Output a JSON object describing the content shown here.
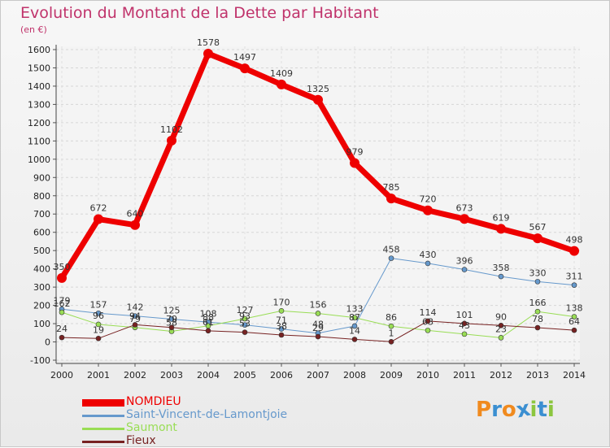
{
  "title": "Evolution du Montant de la Dette par Habitant",
  "subtitle": "(en €)",
  "logo": {
    "letters": [
      "P",
      "r",
      "o",
      "x",
      "i",
      "t",
      "i"
    ],
    "colors": [
      "#f08a1e",
      "#3b8fd1",
      "#f08a1e",
      "#3b8fd1",
      "#8cc63f",
      "#3b8fd1",
      "#8cc63f"
    ]
  },
  "chart_data": {
    "type": "line",
    "x": [
      "2000",
      "2001",
      "2002",
      "2003",
      "2004",
      "2005",
      "2006",
      "2007",
      "2008",
      "2009",
      "2010",
      "2011",
      "2012",
      "2013",
      "2014"
    ],
    "ylim": [
      -100,
      1600
    ],
    "yticks": [
      -100,
      0,
      100,
      200,
      300,
      400,
      500,
      600,
      700,
      800,
      900,
      1000,
      1100,
      1200,
      1300,
      1400,
      1500,
      1600
    ],
    "grid": true,
    "legend_position": "bottom-left",
    "series": [
      {
        "name": "NOMDIEU",
        "color": "#ee0000",
        "width": 7,
        "marker": 6,
        "values": [
          350,
          672,
          640,
          1102,
          1578,
          1497,
          1409,
          1325,
          979,
          785,
          720,
          673,
          619,
          567,
          498
        ],
        "labels": [
          "350",
          "672",
          "640",
          "1102",
          "1578",
          "1497",
          "1409",
          "1325",
          "979",
          "785",
          "720",
          "673",
          "619",
          "567",
          "498"
        ]
      },
      {
        "name": "Saint-Vincent-de-Lamontjoie",
        "color": "#6699cc",
        "width": 1,
        "marker": 3,
        "values": [
          179,
          157,
          142,
          125,
          108,
          93,
          71,
          48,
          87,
          458,
          430,
          396,
          358,
          330,
          311
        ],
        "labels": [
          "179",
          "157",
          "142",
          "125",
          "108",
          "93",
          "71",
          "48",
          "87",
          "458",
          "430",
          "396",
          "358",
          "330",
          "311"
        ]
      },
      {
        "name": "Saumont",
        "color": "#99dd55",
        "width": 1,
        "marker": 3,
        "values": [
          162,
          96,
          79,
          58,
          88,
          127,
          170,
          156,
          133,
          86,
          63,
          43,
          23,
          166,
          138
        ],
        "labels": [
          "162",
          "96",
          "79",
          "58",
          "88",
          "127",
          "170",
          "156",
          "133",
          "86",
          "63",
          "43",
          "23",
          "166",
          "138"
        ]
      },
      {
        "name": "Fieux",
        "color": "#772222",
        "width": 1,
        "marker": 3,
        "values": [
          24,
          19,
          94,
          79,
          61,
          53,
          38,
          29,
          14,
          1,
          114,
          101,
          90,
          78,
          64
        ],
        "labels": [
          "24",
          "19",
          "94",
          "79",
          "61",
          "53",
          "38",
          "29",
          "14",
          "1",
          "114",
          "101",
          "90",
          "78",
          "64"
        ]
      }
    ]
  }
}
